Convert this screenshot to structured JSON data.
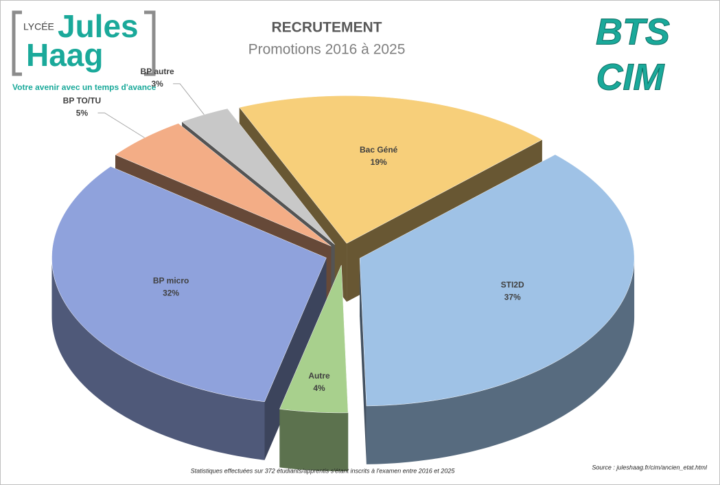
{
  "header": {
    "logo_small": "LYCÉE",
    "logo_word1": "Jules",
    "logo_word2": "Haag",
    "slogan": "Votre avenir avec un temps d'avance",
    "badge1": "BTS",
    "badge2": "CIM"
  },
  "chart_data": {
    "type": "pie",
    "title": "RECRUTEMENT",
    "subtitle": "Promotions 2016 à 2025",
    "categories": [
      "Bac Géné",
      "STI2D",
      "Autre",
      "BP micro",
      "BP TO/TU",
      "BP autre"
    ],
    "values": [
      19,
      37,
      4,
      32,
      5,
      3
    ],
    "value_labels": [
      "19%",
      "37%",
      "4%",
      "32%",
      "5%",
      "3%"
    ],
    "colors": [
      "#f7cf7a",
      "#9fc2e6",
      "#a8d08d",
      "#8fa2dc",
      "#f3ad86",
      "#c8c8c8"
    ]
  },
  "footer": {
    "note": "Statistiques effectuées sur 372 étudiants/apprentis s'étant inscrits à l'examen entre 2016 et 2025",
    "source": "Source : juleshaag.fr/cim/ancien_etat.html"
  }
}
